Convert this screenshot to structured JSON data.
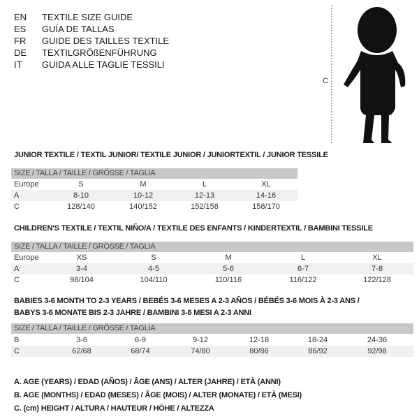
{
  "header": [
    {
      "code": "EN",
      "text": "TEXTILE SIZE GUIDE"
    },
    {
      "code": "ES",
      "text": "GUÍA DE TALLAS"
    },
    {
      "code": "FR",
      "text": "GUIDE DES TAILLES TEXTILE"
    },
    {
      "code": "DE",
      "text": "TEXTILGRÖßENFÜHRUNG"
    },
    {
      "code": "IT",
      "text": "GUIDA ALLE TAGLIE TESSILI"
    }
  ],
  "figure": {
    "measure_label": "C"
  },
  "junior": {
    "title": "JUNIOR TEXTILE / TEXTIL JUNIOR/ TEXTILE JUNIOR / JUNIORTEXTIL / JUNIOR TESSILE",
    "header": "SIZE / TALLA / TAILLE / GRÖSSE / TAGLIA",
    "rows": [
      {
        "label": "Europe",
        "cells": [
          "S",
          "M",
          "L",
          "XL"
        ]
      },
      {
        "label": "A",
        "cells": [
          "8-10",
          "10-12",
          "12-13",
          "14-16"
        ]
      },
      {
        "label": "C",
        "cells": [
          "128/140",
          "140/152",
          "152/158",
          "158/170"
        ]
      }
    ]
  },
  "children": {
    "title": "CHILDREN'S TEXTILE / TEXTIL NIÑO/A / TEXTILE DES ENFANTS / KINDERTEXTIL / BAMBINI TESSILE",
    "header": "SIZE / TALLA / TAILLE / GRÖSSE / TAGLIA",
    "rows": [
      {
        "label": "Europe",
        "cells": [
          "XS",
          "S",
          "M",
          "L",
          "XL"
        ]
      },
      {
        "label": "A",
        "cells": [
          "3-4",
          "4-5",
          "5-6",
          "6-7",
          "7-8"
        ]
      },
      {
        "label": "C",
        "cells": [
          "98/104",
          "104/110",
          "110/116",
          "116/122",
          "122/128"
        ]
      }
    ]
  },
  "babies": {
    "title_line1": "BABIES 3-6 MONTH TO 2-3 YEARS / BEBÉS 3-6 MESES A 2-3 AÑOS / BÉBÉS 3-6 MOIS À 2-3 ANS /",
    "title_line2": "BABYS 3-6 MONATE BIS 2-3 JAHRE / BAMBINI 3-6 MESI A 2-3 ANNI",
    "header": "SIZE / TALLA / TAILLE / GRÖSSE / TAGLIA",
    "rows": [
      {
        "label": "B",
        "cells": [
          "3-6",
          "6-9",
          "9-12",
          "12-18",
          "18-24",
          "24-36"
        ]
      },
      {
        "label": "C",
        "cells": [
          "62/68",
          "68/74",
          "74/80",
          "80/86",
          "86/92",
          "92/98"
        ]
      }
    ]
  },
  "legend": [
    "A. AGE (YEARS) / EDAD (AÑOS) / ÂGE (ANS) / ALTER (JAHRE) / ETÀ (ANNI)",
    "B. AGE (MONTHS) / EDAD (MESES) / ÂGE (MOIS) / ALTER (MONATE) / ETÀ (MESI)",
    "C. (cm) HEIGHT / ALTURA / HAUTEUR / HÖHE / ALTEZZA"
  ]
}
